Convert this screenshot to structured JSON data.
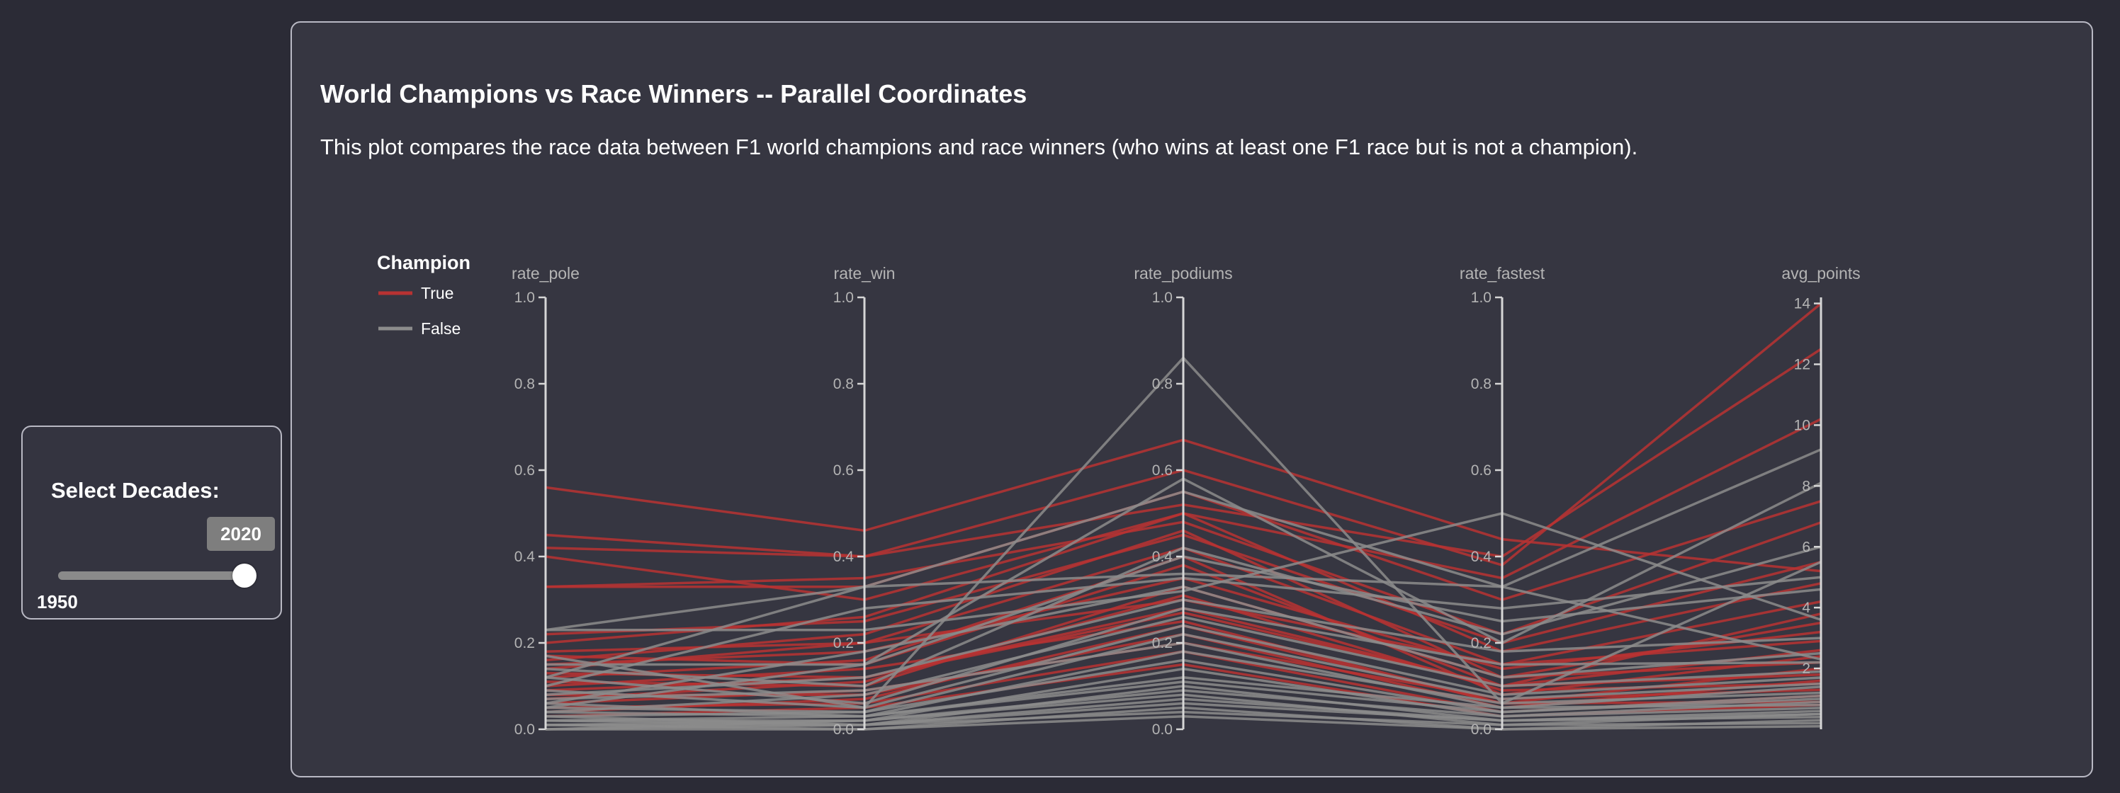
{
  "sidebar": {
    "title": "Select Decades:",
    "slider": {
      "min_label": "1950",
      "value_label": "2020",
      "min": 1950,
      "max": 2020,
      "value": 2020
    }
  },
  "main": {
    "title": "World Champions vs Race Winners -- Parallel Coordinates",
    "description": "This plot compares the race data between F1 world champions and race winners (who wins at least one F1 race but is not a champion)."
  },
  "chart_data": {
    "type": "parallel_coordinates",
    "legend_position": "top-left",
    "grid": false,
    "axes": [
      {
        "name": "rate_pole",
        "range": [
          0,
          1
        ],
        "ticks": [
          "0.0",
          "0.2",
          "0.4",
          "0.6",
          "0.8",
          "1.0"
        ]
      },
      {
        "name": "rate_win",
        "range": [
          0,
          1
        ],
        "ticks": [
          "0.0",
          "0.2",
          "0.4",
          "0.6",
          "0.8",
          "1.0"
        ]
      },
      {
        "name": "rate_podiums",
        "range": [
          0,
          1
        ],
        "ticks": [
          "0.0",
          "0.2",
          "0.4",
          "0.6",
          "0.8",
          "1.0"
        ]
      },
      {
        "name": "rate_fastest",
        "range": [
          0,
          1
        ],
        "ticks": [
          "0.0",
          "0.2",
          "0.4",
          "0.6",
          "0.8",
          "1.0"
        ]
      },
      {
        "name": "avg_points",
        "range": [
          0,
          14.2
        ],
        "ticks": [
          "2",
          "4",
          "6",
          "8",
          "10",
          "12",
          "14"
        ]
      }
    ],
    "legend": {
      "title": "Champion",
      "entries": [
        {
          "label": "True",
          "color": "#b83232"
        },
        {
          "label": "False",
          "color": "#8c8c8c"
        }
      ]
    },
    "series": [
      {
        "name": "True",
        "color": "#b83232",
        "lines": [
          [
            0.56,
            0.46,
            0.67,
            0.44,
            5.2
          ],
          [
            0.45,
            0.4,
            0.6,
            0.38,
            14.0
          ],
          [
            0.42,
            0.4,
            0.52,
            0.4,
            12.5
          ],
          [
            0.4,
            0.3,
            0.5,
            0.35,
            10.2
          ],
          [
            0.33,
            0.33,
            0.55,
            0.3,
            7.5
          ],
          [
            0.33,
            0.35,
            0.48,
            0.22,
            6.8
          ],
          [
            0.22,
            0.25,
            0.45,
            0.2,
            5.5
          ],
          [
            0.2,
            0.26,
            0.5,
            0.18,
            4.8
          ],
          [
            0.18,
            0.2,
            0.42,
            0.15,
            4.2
          ],
          [
            0.17,
            0.15,
            0.38,
            0.1,
            3.8
          ],
          [
            0.16,
            0.22,
            0.46,
            0.12,
            3.5
          ],
          [
            0.15,
            0.18,
            0.35,
            0.14,
            3.2
          ],
          [
            0.14,
            0.2,
            0.3,
            0.15,
            2.9
          ],
          [
            0.13,
            0.12,
            0.28,
            0.1,
            2.6
          ],
          [
            0.12,
            0.16,
            0.4,
            0.08,
            2.4
          ],
          [
            0.11,
            0.1,
            0.33,
            0.12,
            2.2
          ],
          [
            0.1,
            0.14,
            0.25,
            0.06,
            2.0
          ],
          [
            0.09,
            0.12,
            0.27,
            0.1,
            1.8
          ],
          [
            0.08,
            0.08,
            0.22,
            0.05,
            1.6
          ],
          [
            0.07,
            0.11,
            0.31,
            0.09,
            1.5
          ],
          [
            0.06,
            0.09,
            0.2,
            0.07,
            1.3
          ],
          [
            0.05,
            0.06,
            0.18,
            0.04,
            1.1
          ],
          [
            0.04,
            0.07,
            0.24,
            0.06,
            0.9
          ],
          [
            0.03,
            0.05,
            0.15,
            0.03,
            0.8
          ]
        ]
      },
      {
        "name": "False",
        "color": "#8c8c8c",
        "lines": [
          [
            0.17,
            0.05,
            0.86,
            0.06,
            5.5
          ],
          [
            0.05,
            0.15,
            0.58,
            0.2,
            8.1
          ],
          [
            0.23,
            0.23,
            0.32,
            0.5,
            3.6
          ],
          [
            0.23,
            0.33,
            0.36,
            0.33,
            9.2
          ],
          [
            0.12,
            0.33,
            0.55,
            0.33,
            2.3
          ],
          [
            0.15,
            0.15,
            0.4,
            0.25,
            4.6
          ],
          [
            0.1,
            0.28,
            0.35,
            0.28,
            5.0
          ],
          [
            0.14,
            0.1,
            0.42,
            0.22,
            6.0
          ],
          [
            0.08,
            0.12,
            0.3,
            0.18,
            3.0
          ],
          [
            0.06,
            0.18,
            0.33,
            0.12,
            2.5
          ],
          [
            0.12,
            0.06,
            0.28,
            0.15,
            2.2
          ],
          [
            0.04,
            0.08,
            0.26,
            0.1,
            1.9
          ],
          [
            0.09,
            0.05,
            0.24,
            0.08,
            1.7
          ],
          [
            0.03,
            0.04,
            0.22,
            0.07,
            1.5
          ],
          [
            0.07,
            0.09,
            0.2,
            0.05,
            1.4
          ],
          [
            0.02,
            0.03,
            0.18,
            0.06,
            1.2
          ],
          [
            0.05,
            0.04,
            0.16,
            0.04,
            1.0
          ],
          [
            0.01,
            0.02,
            0.14,
            0.03,
            0.9
          ],
          [
            0.06,
            0.03,
            0.12,
            0.05,
            0.8
          ],
          [
            0.02,
            0.01,
            0.1,
            0.02,
            0.6
          ],
          [
            0.0,
            0.02,
            0.08,
            0.01,
            0.5
          ],
          [
            0.03,
            0.01,
            0.06,
            0.02,
            0.4
          ],
          [
            0.01,
            0.0,
            0.05,
            0.0,
            0.3
          ],
          [
            0.0,
            0.01,
            0.04,
            0.01,
            0.2
          ],
          [
            0.02,
            0.02,
            0.09,
            0.03,
            0.7
          ],
          [
            0.04,
            0.03,
            0.11,
            0.04,
            1.1
          ],
          [
            0.01,
            0.01,
            0.07,
            0.02,
            0.5
          ],
          [
            0.0,
            0.0,
            0.03,
            0.0,
            0.1
          ]
        ]
      }
    ]
  }
}
